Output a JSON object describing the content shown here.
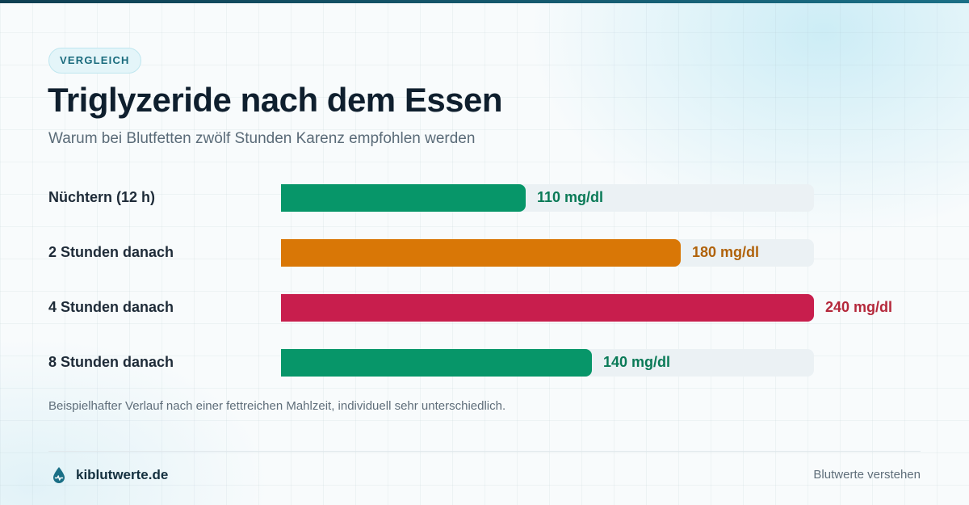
{
  "badge": "VERGLEICH",
  "title": "Triglyzeride nach dem Essen",
  "subtitle": "Warum bei Blutfetten zwölf Stunden Karenz empfohlen werden",
  "note": "Beispielhafter Verlauf nach einer fettreichen Mahlzeit, individuell sehr unterschiedlich.",
  "footer": {
    "brand": "kiblutwerte.de",
    "brand_icon": "blood-drop-icon",
    "tagline": "Blutwerte verstehen"
  },
  "colors": {
    "green": "#079669",
    "orange": "#d97706",
    "red": "#c81e4d",
    "green_text": "#0a7a57",
    "orange_text": "#b0620a",
    "red_text": "#b4283b",
    "track": "#ebf1f4"
  },
  "chart_data": {
    "type": "bar",
    "orientation": "horizontal",
    "unit": "mg/dl",
    "xlim": [
      0,
      240
    ],
    "categories": [
      "Nüchtern (12 h)",
      "2 Stunden danach",
      "4 Stunden danach",
      "8 Stunden danach"
    ],
    "values": [
      110,
      180,
      240,
      140
    ],
    "labels": [
      "110 mg/dl",
      "180 mg/dl",
      "240 mg/dl",
      "140 mg/dl"
    ],
    "bar_colors": [
      "green",
      "orange",
      "red",
      "green"
    ],
    "title": "Triglyzeride nach dem Essen",
    "xlabel": "",
    "ylabel": "",
    "grid": false,
    "legend": "none"
  }
}
